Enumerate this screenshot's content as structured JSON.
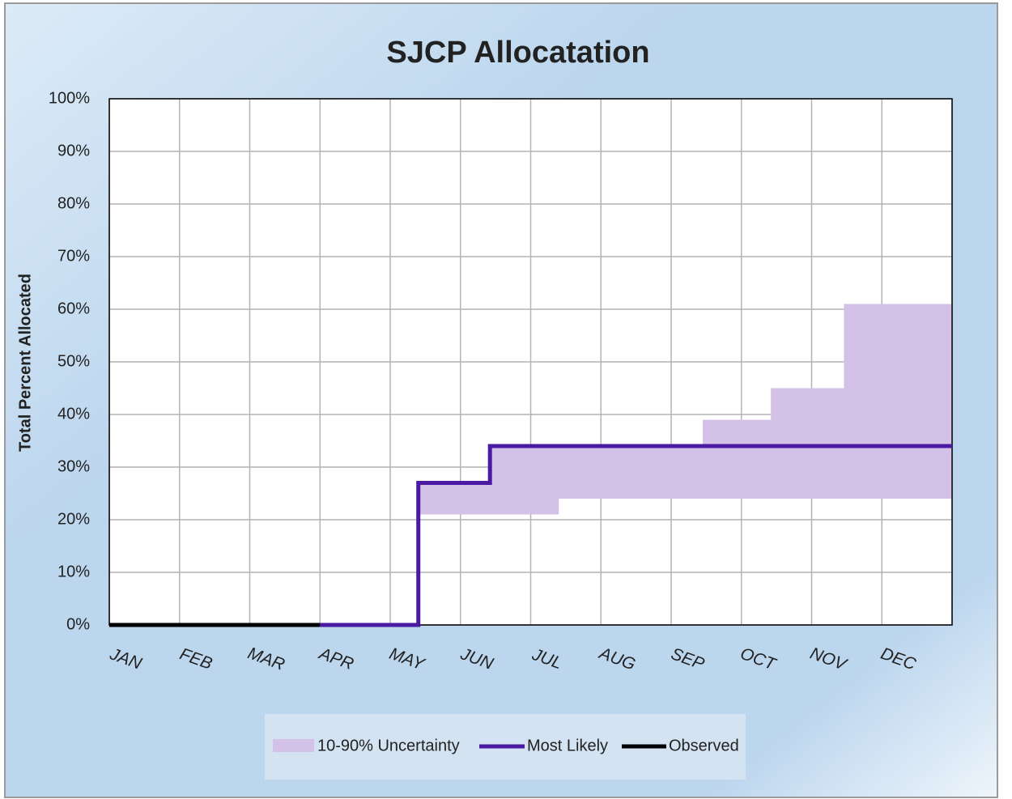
{
  "chart_data": {
    "type": "line",
    "title": "SJCP Allocatation",
    "y_label": "Total Percent Allocated",
    "categories": [
      "JAN",
      "FEB",
      "MAR",
      "APR",
      "MAY",
      "JUN",
      "JUL",
      "AUG",
      "SEP",
      "OCT",
      "NOV",
      "DEC"
    ],
    "xlim": [
      0,
      12
    ],
    "xticks": [
      0,
      1,
      2,
      3,
      4,
      5,
      6,
      7,
      8,
      9,
      10,
      11,
      12
    ],
    "ylim": [
      0,
      100
    ],
    "yticks": [
      {
        "value": 0,
        "label": "0%"
      },
      {
        "value": 10,
        "label": "10%"
      },
      {
        "value": 20,
        "label": "20%"
      },
      {
        "value": 30,
        "label": "30%"
      },
      {
        "value": 40,
        "label": "40%"
      },
      {
        "value": 50,
        "label": "50%"
      },
      {
        "value": 60,
        "label": "60%"
      },
      {
        "value": 70,
        "label": "70%"
      },
      {
        "value": 80,
        "label": "80%"
      },
      {
        "value": 90,
        "label": "90%"
      },
      {
        "value": 100,
        "label": "100%"
      }
    ],
    "grid": true,
    "legend": "bottom",
    "band": {
      "name": "10-90% Uncertainty",
      "color": "#d3c1e7",
      "x": [
        4.4,
        5.42,
        5.42,
        6.4,
        6.4,
        8.45,
        8.45,
        9.42,
        9.42,
        10.46,
        10.46,
        12
      ],
      "low": [
        21,
        21,
        21,
        21,
        24,
        24,
        24,
        24,
        24,
        24,
        24,
        24
      ],
      "high": [
        27,
        27,
        34,
        34,
        34,
        34,
        39,
        39,
        45,
        45,
        61,
        61
      ]
    },
    "series": [
      {
        "name": "Most Likely",
        "color": "#4a1aa3",
        "x": [
          3,
          4.4,
          4.4,
          5.42,
          5.42,
          12
        ],
        "values": [
          0,
          0,
          27,
          27,
          34,
          34
        ]
      },
      {
        "name": "Observed",
        "color": "#000000",
        "x": [
          0,
          3
        ],
        "values": [
          0,
          0
        ]
      }
    ]
  }
}
